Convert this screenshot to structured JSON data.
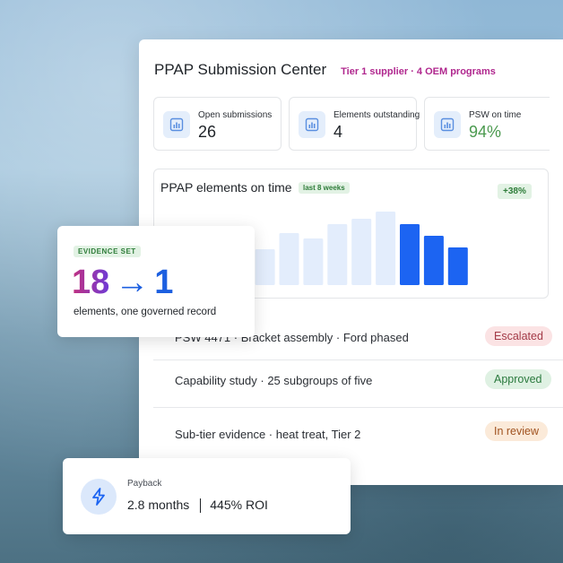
{
  "header": {
    "title": "PPAP Submission Center",
    "subtitle": "Tier 1 supplier · 4 OEM programs"
  },
  "kpis": [
    {
      "label": "Open submissions",
      "value": "26",
      "icon": "bar-chart-icon"
    },
    {
      "label": "Elements outstanding",
      "value": "4",
      "icon": "bar-chart-icon"
    },
    {
      "label": "PSW on time",
      "value": "94%",
      "icon": "bar-chart-icon"
    }
  ],
  "chart": {
    "title": "PPAP elements on time",
    "badge": "last 8 weeks",
    "delta": "+38%"
  },
  "chart_data": {
    "type": "bar",
    "title": "PPAP elements on time",
    "values": [
      22,
      32,
      32,
      34,
      40,
      58,
      52,
      68,
      74,
      82,
      68,
      55,
      42
    ],
    "highlighted_from_index": 10,
    "colors": {
      "muted": "#e3edfc",
      "highlight": "#1c64f2"
    },
    "grid": false
  },
  "rows": [
    {
      "text": "PSW 4471 · Bracket assembly · Ford phased",
      "status": "Escalated",
      "status_type": "escalated"
    },
    {
      "text": "Capability study · 25 subgroups of five",
      "status": "Approved",
      "status_type": "approved"
    },
    {
      "text": "Sub-tier evidence · heat treat, Tier 2",
      "status": "In review",
      "status_type": "review"
    }
  ],
  "evidence": {
    "tag": "EVIDENCE SET",
    "from": "18",
    "arrow": "→",
    "to": "1",
    "caption": "elements, one governed record"
  },
  "payback": {
    "label": "Payback",
    "months": "2.8 months",
    "roi": "445% ROI",
    "icon": "lightning-icon"
  },
  "colors": {
    "accent": "#1c64f2",
    "subtitle": "#b0278e",
    "success": "#4b9a4f"
  }
}
